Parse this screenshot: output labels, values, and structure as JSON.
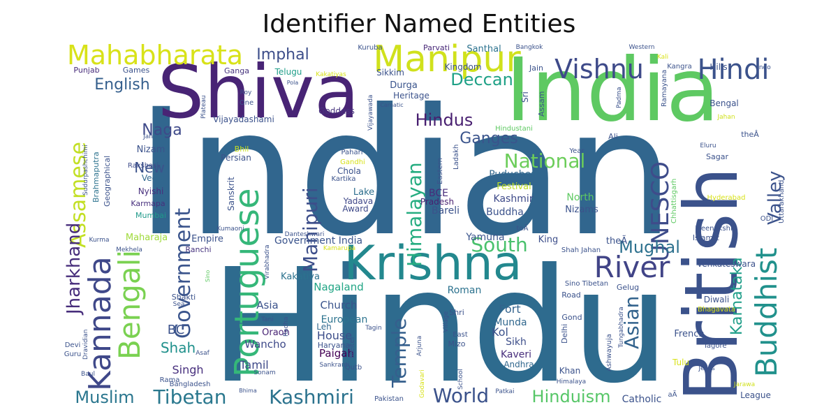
{
  "title": "Identifier Named Entities",
  "chart_data": {
    "type": "wordcloud",
    "title": "Identifier Named Entities",
    "colormap": "viridis",
    "background": "#ffffff",
    "words": [
      {
        "text": "Indian",
        "color": "#31668e"
      },
      {
        "text": "Hindu",
        "color": "#2e6b8e"
      },
      {
        "text": "India",
        "color": "#5ec962"
      },
      {
        "text": "Shiva",
        "color": "#482475"
      },
      {
        "text": "British",
        "color": "#3b528b"
      },
      {
        "text": "Krishna",
        "color": "#23888e"
      },
      {
        "text": "Manipur",
        "color": "#d0e11c"
      },
      {
        "text": "Portuguese",
        "color": "#35b779"
      },
      {
        "text": "Buddhist",
        "color": "#21918c"
      },
      {
        "text": "Mahabharata",
        "color": "#d8e219"
      },
      {
        "text": "Kannada",
        "color": "#3f4889"
      },
      {
        "text": "Bengali",
        "color": "#7ad151"
      },
      {
        "text": "River",
        "color": "#414487"
      },
      {
        "text": "Vishnu",
        "color": "#3e4a89"
      },
      {
        "text": "Hindi",
        "color": "#3b528b"
      },
      {
        "text": "UNESCO",
        "color": "#3e4c8a"
      },
      {
        "text": "Government",
        "color": "#3a548c"
      },
      {
        "text": "Manipuri",
        "color": "#3d4e8a"
      },
      {
        "text": "Himalayan",
        "color": "#26ad81"
      },
      {
        "text": "Temple",
        "color": "#355f8d"
      },
      {
        "text": "Tibetan",
        "color": "#2a788e"
      },
      {
        "text": "Kashmiri",
        "color": "#2c738e"
      },
      {
        "text": "Assamese",
        "color": "#c2df23"
      },
      {
        "text": "Jharkhand",
        "color": "#472d7b"
      },
      {
        "text": "Valley",
        "color": "#3b528b"
      },
      {
        "text": "National",
        "color": "#6ccd5a"
      },
      {
        "text": "Asian",
        "color": "#33638d"
      },
      {
        "text": "Karnataka",
        "color": "#1f9e89"
      },
      {
        "text": "South",
        "color": "#4ac16d"
      },
      {
        "text": "Mughal",
        "color": "#2d718e"
      },
      {
        "text": "Hinduism",
        "color": "#56c667"
      },
      {
        "text": "Muslim",
        "color": "#2a768e"
      },
      {
        "text": "World",
        "color": "#3b528b"
      },
      {
        "text": "Hindus",
        "color": "#481f70"
      },
      {
        "text": "Deccan",
        "color": "#1fa187"
      },
      {
        "text": "English",
        "color": "#355f8d"
      },
      {
        "text": "Ganges",
        "color": "#3a548c"
      },
      {
        "text": "Naga",
        "color": "#3e4989"
      },
      {
        "text": "Imphal",
        "color": "#3d4e8a"
      },
      {
        "text": "Shah",
        "color": "#21918c"
      },
      {
        "text": "New",
        "color": "#3b528b"
      },
      {
        "text": "BC",
        "color": "#3b528b"
      },
      {
        "text": "Singh",
        "color": "#472f7d"
      },
      {
        "text": "Tamil",
        "color": "#3e4989"
      },
      {
        "text": "Kakatiya",
        "color": "#2c728e"
      },
      {
        "text": "Asia",
        "color": "#3b528b"
      },
      {
        "text": "Church",
        "color": "#3a548c"
      },
      {
        "text": "European",
        "color": "#2c738e"
      },
      {
        "text": "House",
        "color": "#3d4e8a"
      },
      {
        "text": "Paigah",
        "color": "#440154"
      },
      {
        "text": "Wancho",
        "color": "#3e4989"
      },
      {
        "text": "Oraon",
        "color": "#482475"
      },
      {
        "text": "Leh",
        "color": "#31688e"
      },
      {
        "text": "Nagaland",
        "color": "#21a585"
      },
      {
        "text": "Roman",
        "color": "#2c728e"
      },
      {
        "text": "Fort",
        "color": "#33638d"
      },
      {
        "text": "Munda",
        "color": "#31688e"
      },
      {
        "text": "Kol",
        "color": "#3b528b"
      },
      {
        "text": "Sikh",
        "color": "#3d4e8a"
      },
      {
        "text": "Kaveri",
        "color": "#472d7b"
      },
      {
        "text": "Andhra",
        "color": "#31688e"
      },
      {
        "text": "Lake",
        "color": "#2e6f8e"
      },
      {
        "text": "Yadava",
        "color": "#3f4788"
      },
      {
        "text": "Award",
        "color": "#3e4989"
      },
      {
        "text": "BCE",
        "color": "#472c7a"
      },
      {
        "text": "Pradesh",
        "color": "#481f70"
      },
      {
        "text": "Bareli",
        "color": "#3b528b"
      },
      {
        "text": "Kashmir",
        "color": "#3e4a89"
      },
      {
        "text": "Buddha",
        "color": "#3b528b"
      },
      {
        "text": "Puducherry",
        "color": "#31688e"
      },
      {
        "text": "Festival",
        "color": "#bddf26"
      },
      {
        "text": "North",
        "color": "#5ec962"
      },
      {
        "text": "Nizams",
        "color": "#3b528b"
      },
      {
        "text": "Yamuna",
        "color": "#3a548c"
      },
      {
        "text": "King",
        "color": "#3d4e8a"
      },
      {
        "text": "Empire",
        "color": "#3b528b"
      },
      {
        "text": "Ranchi",
        "color": "#46337e"
      },
      {
        "text": "Maharaja",
        "color": "#9fda3a"
      },
      {
        "text": "Government India",
        "color": "#3a548c"
      },
      {
        "text": "Sanskrit",
        "color": "#3b528b"
      },
      {
        "text": "Persian",
        "color": "#3b528b"
      },
      {
        "text": "Bhil",
        "color": "#c8e020"
      },
      {
        "text": "Nizam",
        "color": "#3b528b"
      },
      {
        "text": "Geographical",
        "color": "#3b528b"
      },
      {
        "text": "Brahmaputra",
        "color": "#2c728e"
      },
      {
        "text": "Vedic",
        "color": "#31688e"
      },
      {
        "text": "Karmapa",
        "color": "#472f7d"
      },
      {
        "text": "Mumbai",
        "color": "#1f9a8a"
      },
      {
        "text": "Nyishi",
        "color": "#472f7d"
      },
      {
        "text": "Rakshasi",
        "color": "#3e4c8a"
      },
      {
        "text": "Vijayadashami",
        "color": "#3b528b"
      },
      {
        "text": "Goddess",
        "color": "#46337e"
      },
      {
        "text": "Durga",
        "color": "#3a548c"
      },
      {
        "text": "Heritage",
        "color": "#3b528b"
      },
      {
        "text": "Kingdom",
        "color": "#3b528b"
      },
      {
        "text": "Sikkim",
        "color": "#3b528b"
      },
      {
        "text": "Telugu",
        "color": "#1f9e89"
      },
      {
        "text": "Ganga",
        "color": "#46337e"
      },
      {
        "text": "Games",
        "color": "#3b528b"
      },
      {
        "text": "Punjab",
        "color": "#472c7a"
      },
      {
        "text": "Santhal",
        "color": "#2c728e"
      },
      {
        "text": "Parvati",
        "color": "#482878"
      },
      {
        "text": "Kuruba",
        "color": "#3b528b"
      },
      {
        "text": "Bangkok",
        "color": "#3b528b"
      },
      {
        "text": "Western",
        "color": "#3b528b"
      },
      {
        "text": "Kali",
        "color": "#d8e219"
      },
      {
        "text": "Kangra",
        "color": "#3b528b"
      },
      {
        "text": "Hills",
        "color": "#3b528b"
      },
      {
        "text": "Indo",
        "color": "#3b528b"
      },
      {
        "text": "Jain",
        "color": "#3b528b"
      },
      {
        "text": "Bengal",
        "color": "#3b528b"
      },
      {
        "text": "Jahan",
        "color": "#d0e11c"
      },
      {
        "text": "Ramayana",
        "color": "#3b528b"
      },
      {
        "text": "Padma",
        "color": "#3b528b"
      },
      {
        "text": "Assam",
        "color": "#3b528b"
      },
      {
        "text": "Sri",
        "color": "#3b528b"
      },
      {
        "text": "Hindustani",
        "color": "#5ec962"
      },
      {
        "text": "Ali",
        "color": "#3b528b"
      },
      {
        "text": "theÂ",
        "color": "#3b528b"
      },
      {
        "text": "Eluru",
        "color": "#3b528b"
      },
      {
        "text": "Year",
        "color": "#3b528b"
      },
      {
        "text": "Sagar",
        "color": "#3b528b"
      },
      {
        "text": "Uttarakhand",
        "color": "#3b528b"
      },
      {
        "text": "Hyderabad",
        "color": "#d8e219"
      },
      {
        "text": "Chhattisgarh",
        "color": "#5ec962"
      },
      {
        "text": "Meenakshi",
        "color": "#3b528b"
      },
      {
        "text": "Islamic",
        "color": "#3b528b"
      },
      {
        "text": "ODI",
        "color": "#3b528b"
      },
      {
        "text": "Venkateswara",
        "color": "#3b528b"
      },
      {
        "text": "Gelug",
        "color": "#3b528b"
      },
      {
        "text": "Diwali",
        "color": "#3b528b"
      },
      {
        "text": "Bhagavata",
        "color": "#d8e219"
      },
      {
        "text": "French",
        "color": "#3b528b"
      },
      {
        "text": "Tagore",
        "color": "#3b528b"
      },
      {
        "text": "Tulu",
        "color": "#d8e219"
      },
      {
        "text": "Jesus",
        "color": "#3b528b"
      },
      {
        "text": "Jarawa",
        "color": "#d0e11c"
      },
      {
        "text": "League",
        "color": "#3b528b"
      },
      {
        "text": "Catholic",
        "color": "#3b528b"
      },
      {
        "text": "aÃ",
        "color": "#3b528b"
      },
      {
        "text": "Khan",
        "color": "#3b528b"
      },
      {
        "text": "Himalaya",
        "color": "#3b528b"
      },
      {
        "text": "Patkai",
        "color": "#3b528b"
      },
      {
        "text": "Delhi",
        "color": "#3b528b"
      },
      {
        "text": "Ashwayuja",
        "color": "#3b528b"
      },
      {
        "text": "Tungabhadra",
        "color": "#3b528b"
      },
      {
        "text": "Gond",
        "color": "#3b528b"
      },
      {
        "text": "Road",
        "color": "#3b528b"
      },
      {
        "text": "Sino Tibetan",
        "color": "#3b528b"
      },
      {
        "text": "Shah Jahan",
        "color": "#3b528b"
      },
      {
        "text": "theÃ",
        "color": "#3b528b"
      },
      {
        "text": "toÃ",
        "color": "#3b528b"
      },
      {
        "text": "Shri",
        "color": "#3b528b"
      },
      {
        "text": "East",
        "color": "#3b528b"
      },
      {
        "text": "Village",
        "color": "#3b528b"
      },
      {
        "text": "Mizo",
        "color": "#3b528b"
      },
      {
        "text": "School",
        "color": "#3b528b"
      },
      {
        "text": "Godavari",
        "color": "#d8e219"
      },
      {
        "text": "Pakistan",
        "color": "#3b528b"
      },
      {
        "text": "Qutb",
        "color": "#3b528b"
      },
      {
        "text": "Meitei",
        "color": "#3b528b"
      },
      {
        "text": "Arjuna",
        "color": "#3b528b"
      },
      {
        "text": "Haryana",
        "color": "#3b528b"
      },
      {
        "text": "Sankranti",
        "color": "#3b528b"
      },
      {
        "text": "Sonam",
        "color": "#3b528b"
      },
      {
        "text": "Bhima",
        "color": "#3b528b"
      },
      {
        "text": "Bangladesh",
        "color": "#3b528b"
      },
      {
        "text": "Rama",
        "color": "#3b528b"
      },
      {
        "text": "Baul",
        "color": "#3b528b"
      },
      {
        "text": "Guru",
        "color": "#3b528b"
      },
      {
        "text": "Devi",
        "color": "#3b528b"
      },
      {
        "text": "Asaf",
        "color": "#3b528b"
      },
      {
        "text": "Dravidian",
        "color": "#3b528b"
      },
      {
        "text": "Sea",
        "color": "#3b528b"
      },
      {
        "text": "Shakti",
        "color": "#3b528b"
      },
      {
        "text": "Tani",
        "color": "#3b528b"
      },
      {
        "text": "Radha",
        "color": "#3b528b"
      },
      {
        "text": "Tagin",
        "color": "#3b528b"
      },
      {
        "text": "Kamarupa",
        "color": "#d8e219"
      },
      {
        "text": "Virabhadra",
        "color": "#3b528b"
      },
      {
        "text": "Danteshwari",
        "color": "#3b528b"
      },
      {
        "text": "Kumaoni",
        "color": "#3b528b"
      },
      {
        "text": "Mekhela",
        "color": "#3b528b"
      },
      {
        "text": "Kurma",
        "color": "#3b528b"
      },
      {
        "text": "Sino",
        "color": "#5ec962"
      },
      {
        "text": "Sudurpashchimi",
        "color": "#3b528b"
      },
      {
        "text": "Jah",
        "color": "#3b528b"
      },
      {
        "text": "Plateau",
        "color": "#3b528b"
      },
      {
        "text": "Roy",
        "color": "#3b528b"
      },
      {
        "text": "One",
        "color": "#3b528b"
      },
      {
        "text": "Pola",
        "color": "#3b528b"
      },
      {
        "text": "Kakatiyas",
        "color": "#d8e219"
      },
      {
        "text": "Vijayawada",
        "color": "#3b528b"
      },
      {
        "text": "Carnatic",
        "color": "#3b528b"
      },
      {
        "text": "Pahari",
        "color": "#3b528b"
      },
      {
        "text": "Gandhi",
        "color": "#d8e219"
      },
      {
        "text": "Chola",
        "color": "#3b528b"
      },
      {
        "text": "Kartika",
        "color": "#3b528b"
      },
      {
        "text": "Eastern",
        "color": "#3b528b"
      },
      {
        "text": "Ladakh",
        "color": "#3b528b"
      }
    ]
  }
}
